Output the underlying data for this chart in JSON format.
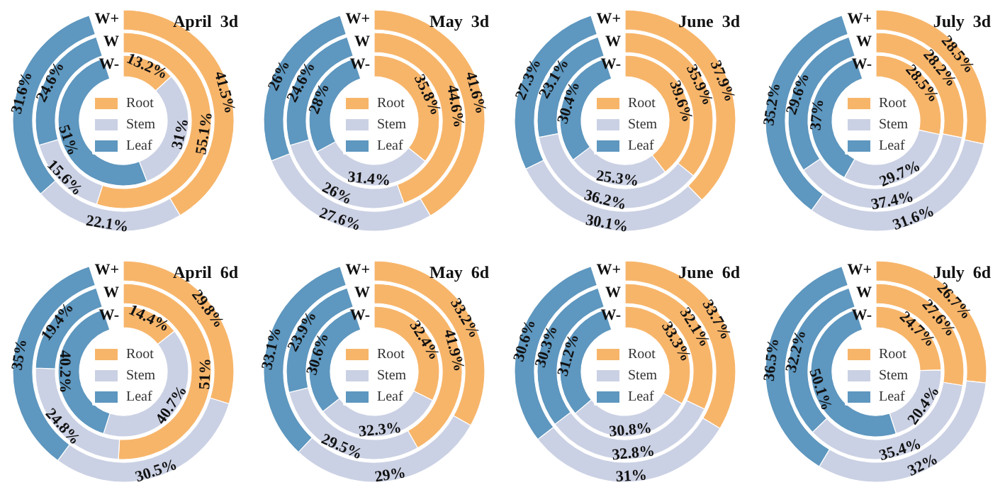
{
  "chart_data": [
    {
      "type": "donut",
      "title": "April  3d",
      "categories": [
        "Root",
        "Stem",
        "Leaf"
      ],
      "colors": [
        "#f7b56a",
        "#cbd1e4",
        "#5e97bf"
      ],
      "legend": "center",
      "series": [
        {
          "name": "W-",
          "values": [
            13.2,
            31,
            51
          ],
          "value_labels": [
            "13.2%",
            "31%",
            "51%"
          ]
        },
        {
          "name": "W",
          "values": [
            55.1,
            15.6,
            24.6
          ],
          "value_labels": [
            "55.1%",
            "15.6%",
            "24.6%"
          ]
        },
        {
          "name": "W+",
          "values": [
            41.5,
            22.1,
            31.6
          ],
          "value_labels": [
            "41.5%",
            "22.1%",
            "31.6%"
          ]
        }
      ]
    },
    {
      "type": "donut",
      "title": "May  3d",
      "categories": [
        "Root",
        "Stem",
        "Leaf"
      ],
      "colors": [
        "#f7b56a",
        "#cbd1e4",
        "#5e97bf"
      ],
      "legend": "center",
      "series": [
        {
          "name": "W-",
          "values": [
            35.8,
            31.4,
            28
          ],
          "value_labels": [
            "35.8%",
            "31.4%",
            "28%"
          ]
        },
        {
          "name": "W",
          "values": [
            44.6,
            26,
            24.6
          ],
          "value_labels": [
            "44.6%",
            "26%",
            "24.6%"
          ]
        },
        {
          "name": "W+",
          "values": [
            41.6,
            27.6,
            26
          ],
          "value_labels": [
            "41.6%",
            "27.6%",
            "26%"
          ]
        }
      ]
    },
    {
      "type": "donut",
      "title": "June  3d",
      "categories": [
        "Root",
        "Stem",
        "Leaf"
      ],
      "colors": [
        "#f7b56a",
        "#cbd1e4",
        "#5e97bf"
      ],
      "legend": "center",
      "series": [
        {
          "name": "W-",
          "values": [
            39.6,
            25.3,
            30.4
          ],
          "value_labels": [
            "39.6%",
            "25.3%",
            "30.4%"
          ]
        },
        {
          "name": "W",
          "values": [
            35.9,
            36.2,
            23.1
          ],
          "value_labels": [
            "35.9%",
            "36.2%",
            "23.1%"
          ]
        },
        {
          "name": "W+",
          "values": [
            37.9,
            30.1,
            27.3
          ],
          "value_labels": [
            "37.9%",
            "30.1%",
            "27.3%"
          ]
        }
      ]
    },
    {
      "type": "donut",
      "title": "July  3d",
      "categories": [
        "Root",
        "Stem",
        "Leaf"
      ],
      "colors": [
        "#f7b56a",
        "#cbd1e4",
        "#5e97bf"
      ],
      "legend": "center",
      "series": [
        {
          "name": "W-",
          "values": [
            28.5,
            29.7,
            37
          ],
          "value_labels": [
            "28.5%",
            "29.7%",
            "37%"
          ]
        },
        {
          "name": "W",
          "values": [
            28.2,
            37.4,
            29.6
          ],
          "value_labels": [
            "28.2%",
            "37.4%",
            "29.6%"
          ]
        },
        {
          "name": "W+",
          "values": [
            28.5,
            31.6,
            35.2
          ],
          "value_labels": [
            "28.5%",
            "31.6%",
            "35.2%"
          ]
        }
      ]
    },
    {
      "type": "donut",
      "title": "April  6d",
      "categories": [
        "Root",
        "Stem",
        "Leaf"
      ],
      "colors": [
        "#f7b56a",
        "#cbd1e4",
        "#5e97bf"
      ],
      "legend": "center",
      "series": [
        {
          "name": "W-",
          "values": [
            14.4,
            40.7,
            40.2
          ],
          "value_labels": [
            "14.4%",
            "40.7%",
            "40.2%"
          ]
        },
        {
          "name": "W",
          "values": [
            51,
            24.8,
            19.4
          ],
          "value_labels": [
            "51%",
            "24.8%",
            "19.4%"
          ]
        },
        {
          "name": "W+",
          "values": [
            29.8,
            30.5,
            35
          ],
          "value_labels": [
            "29.8%",
            "30.5%",
            "35%"
          ]
        }
      ]
    },
    {
      "type": "donut",
      "title": "May  6d",
      "categories": [
        "Root",
        "Stem",
        "Leaf"
      ],
      "colors": [
        "#f7b56a",
        "#cbd1e4",
        "#5e97bf"
      ],
      "legend": "center",
      "series": [
        {
          "name": "W-",
          "values": [
            32.4,
            32.3,
            30.6
          ],
          "value_labels": [
            "32.4%",
            "32.3%",
            "30.6%"
          ]
        },
        {
          "name": "W",
          "values": [
            41.9,
            29.5,
            23.9
          ],
          "value_labels": [
            "41.9%",
            "29.5%",
            "23.9%"
          ]
        },
        {
          "name": "W+",
          "values": [
            33.2,
            29,
            33.1
          ],
          "value_labels": [
            "33.2%",
            "29%",
            "33.1%"
          ]
        }
      ]
    },
    {
      "type": "donut",
      "title": "June  6d",
      "categories": [
        "Root",
        "Stem",
        "Leaf"
      ],
      "colors": [
        "#f7b56a",
        "#cbd1e4",
        "#5e97bf"
      ],
      "legend": "center",
      "series": [
        {
          "name": "W-",
          "values": [
            33.3,
            30.8,
            31.2
          ],
          "value_labels": [
            "33.3%",
            "30.8%",
            "31.2%"
          ]
        },
        {
          "name": "W",
          "values": [
            32.1,
            32.8,
            30.3
          ],
          "value_labels": [
            "32.1%",
            "32.8%",
            "30.3%"
          ]
        },
        {
          "name": "W+",
          "values": [
            33.7,
            31,
            30.6
          ],
          "value_labels": [
            "33.7%",
            "31%",
            "30.6%"
          ]
        }
      ]
    },
    {
      "type": "donut",
      "title": "July  6d",
      "categories": [
        "Root",
        "Stem",
        "Leaf"
      ],
      "colors": [
        "#f7b56a",
        "#cbd1e4",
        "#5e97bf"
      ],
      "legend": "center",
      "series": [
        {
          "name": "W-",
          "values": [
            24.7,
            20.4,
            50.1
          ],
          "value_labels": [
            "24.7%",
            "20.4%",
            "50.1%"
          ]
        },
        {
          "name": "W",
          "values": [
            27.6,
            35.4,
            32.2
          ],
          "value_labels": [
            "27.6%",
            "35.4%",
            "32.2%"
          ]
        },
        {
          "name": "W+",
          "values": [
            26.7,
            32,
            36.5
          ],
          "value_labels": [
            "26.7%",
            "32%",
            "36.5%"
          ]
        }
      ]
    }
  ]
}
